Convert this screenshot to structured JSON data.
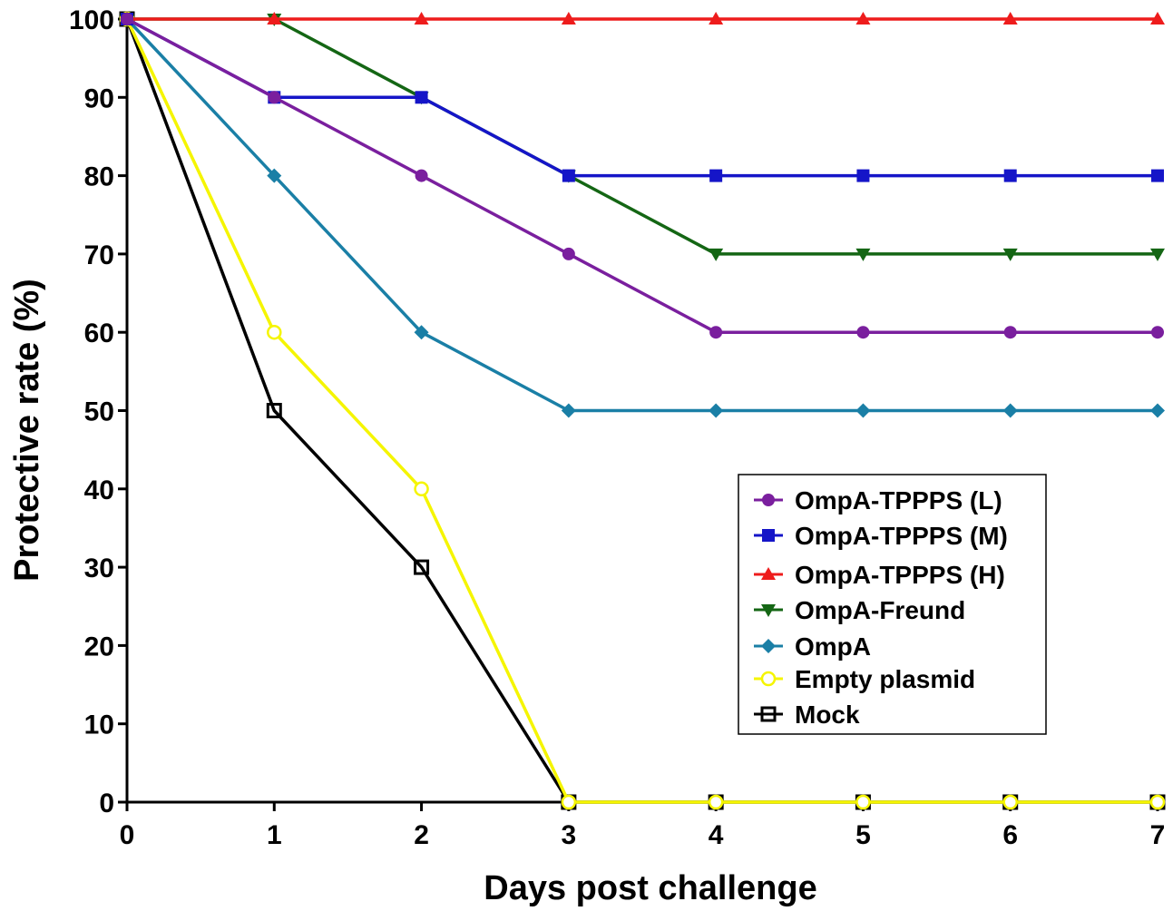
{
  "chart_data": {
    "type": "line",
    "title": "",
    "xlabel": "Days post challenge",
    "ylabel": "Protective rate (%)",
    "x": [
      0,
      1,
      2,
      3,
      4,
      5,
      6,
      7
    ],
    "xlim": [
      0,
      7
    ],
    "ylim": [
      0,
      100
    ],
    "xticks": [
      "0",
      "1",
      "2",
      "3",
      "4",
      "5",
      "6",
      "7"
    ],
    "yticks": [
      "0",
      "10",
      "20",
      "30",
      "40",
      "50",
      "60",
      "70",
      "80",
      "90",
      "100"
    ],
    "grid": false,
    "legend_position": "lower-right",
    "series": [
      {
        "name": "OmpA-TPPPS (L)",
        "color": "#7a1f9e",
        "marker": "circle",
        "values": [
          100,
          90,
          80,
          70,
          60,
          60,
          60,
          60
        ]
      },
      {
        "name": "OmpA-TPPPS (M)",
        "color": "#1515c8",
        "marker": "square",
        "values": [
          100,
          90,
          90,
          80,
          80,
          80,
          80,
          80
        ]
      },
      {
        "name": "OmpA-TPPPS (H)",
        "color": "#ee1c1c",
        "marker": "triangle-up",
        "values": [
          100,
          100,
          100,
          100,
          100,
          100,
          100,
          100
        ]
      },
      {
        "name": "OmpA-Freund",
        "color": "#146614",
        "marker": "triangle-down",
        "values": [
          100,
          100,
          90,
          80,
          70,
          70,
          70,
          70
        ]
      },
      {
        "name": "OmpA",
        "color": "#1a7fa6",
        "marker": "diamond",
        "values": [
          100,
          80,
          60,
          50,
          50,
          50,
          50,
          50
        ]
      },
      {
        "name": "Empty plasmid",
        "color": "#f5f500",
        "marker": "circle-open",
        "values": [
          100,
          60,
          40,
          0,
          0,
          0,
          0,
          0
        ]
      },
      {
        "name": "Mock",
        "color": "#000000",
        "marker": "square-open",
        "values": [
          100,
          50,
          30,
          0,
          0,
          0,
          0,
          0
        ]
      }
    ]
  }
}
